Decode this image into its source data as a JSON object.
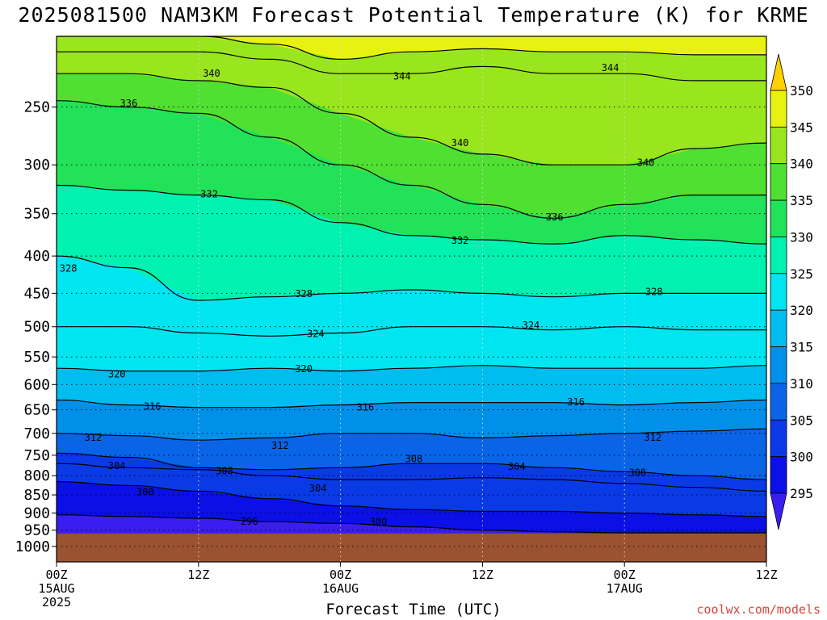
{
  "title": "2025081500 NAM3KM Forecast Potential Temperature (K) for KRME",
  "xaxis_title": "Forecast Time (UTC)",
  "credit": "coolwx.com/models",
  "colors": {
    "terrain": "#9a5231",
    "contour_line": "#000000",
    "credit_text": "#d9453a"
  },
  "chart_data": {
    "type": "heatmap",
    "title": "2025081500 NAM3KM Forecast Potential Temperature (K) for KRME",
    "xlabel": "Forecast Time (UTC)",
    "ylabel": "",
    "y_axis": {
      "log_pressure": true,
      "range_hpa": [
        1050,
        200
      ],
      "ticks": [
        250,
        300,
        350,
        400,
        450,
        500,
        550,
        600,
        650,
        700,
        750,
        800,
        850,
        900,
        950,
        1000
      ],
      "tick_labels": [
        "250",
        "300",
        "350",
        "400",
        "450",
        "500",
        "550",
        "600",
        "650",
        "700",
        "750",
        "800",
        "850",
        "900",
        "950",
        "1000"
      ]
    },
    "x_axis": {
      "range_hours": [
        0,
        60
      ],
      "ticks_hours": [
        0,
        12,
        24,
        36,
        48,
        60
      ],
      "tick_labels": [
        [
          "00Z",
          "15AUG",
          "2025"
        ],
        [
          "12Z"
        ],
        [
          "00Z",
          "16AUG"
        ],
        [
          "12Z"
        ],
        [
          "00Z",
          "17AUG"
        ],
        [
          "12Z"
        ]
      ]
    },
    "grid": true,
    "colorbar": {
      "labels": [
        "295",
        "300",
        "305",
        "310",
        "315",
        "320",
        "325",
        "330",
        "335",
        "340",
        "345",
        "350"
      ],
      "bins": [
        {
          "from": 290,
          "to": 295,
          "color": "#3a1ef0"
        },
        {
          "from": 295,
          "to": 300,
          "color": "#0a10e6"
        },
        {
          "from": 300,
          "to": 305,
          "color": "#0a3ae6"
        },
        {
          "from": 305,
          "to": 310,
          "color": "#0a64e8"
        },
        {
          "from": 310,
          "to": 315,
          "color": "#0090ea"
        },
        {
          "from": 315,
          "to": 320,
          "color": "#00bdf0"
        },
        {
          "from": 320,
          "to": 325,
          "color": "#00e6f0"
        },
        {
          "from": 325,
          "to": 330,
          "color": "#00f2b0"
        },
        {
          "from": 330,
          "to": 335,
          "color": "#22e25a"
        },
        {
          "from": 335,
          "to": 340,
          "color": "#50e032"
        },
        {
          "from": 340,
          "to": 345,
          "color": "#9ae61e"
        },
        {
          "from": 345,
          "to": 350,
          "color": "#e8f210"
        },
        {
          "from": 350,
          "to": 360,
          "color": "#ffd100"
        }
      ]
    },
    "terrain_top_hpa": 960,
    "hours": [
      0,
      6,
      12,
      18,
      24,
      30,
      36,
      42,
      48,
      54,
      60
    ],
    "isentropes": [
      {
        "theta": 296,
        "pressure_hpa": [
          905,
          910,
          915,
          925,
          930,
          940,
          950,
          955,
          958,
          958,
          958
        ]
      },
      {
        "theta": 300,
        "pressure_hpa": [
          815,
          825,
          840,
          860,
          880,
          890,
          895,
          895,
          900,
          905,
          910
        ]
      },
      {
        "theta": 304,
        "pressure_hpa": [
          770,
          780,
          785,
          800,
          810,
          810,
          805,
          810,
          820,
          830,
          840
        ]
      },
      {
        "theta": 308,
        "pressure_hpa": [
          745,
          755,
          780,
          785,
          780,
          770,
          770,
          780,
          790,
          800,
          810
        ]
      },
      {
        "theta": 312,
        "pressure_hpa": [
          700,
          705,
          715,
          710,
          700,
          700,
          710,
          705,
          700,
          695,
          690
        ]
      },
      {
        "theta": 316,
        "pressure_hpa": [
          630,
          640,
          645,
          645,
          640,
          635,
          635,
          635,
          640,
          635,
          630
        ]
      },
      {
        "theta": 320,
        "pressure_hpa": [
          570,
          575,
          575,
          570,
          575,
          570,
          565,
          570,
          570,
          570,
          565
        ]
      },
      {
        "theta": 324,
        "pressure_hpa": [
          500,
          500,
          510,
          515,
          510,
          500,
          500,
          505,
          500,
          505,
          505
        ]
      },
      {
        "theta": 328,
        "pressure_hpa": [
          400,
          415,
          460,
          455,
          450,
          445,
          450,
          455,
          450,
          450,
          450
        ]
      },
      {
        "theta": 332,
        "pressure_hpa": [
          320,
          325,
          330,
          335,
          360,
          375,
          380,
          385,
          375,
          380,
          385
        ]
      },
      {
        "theta": 336,
        "pressure_hpa": [
          245,
          250,
          255,
          275,
          300,
          320,
          340,
          355,
          340,
          330,
          330
        ]
      },
      {
        "theta": 340,
        "pressure_hpa": [
          225,
          225,
          230,
          235,
          255,
          275,
          290,
          300,
          300,
          285,
          280
        ]
      },
      {
        "theta": 344,
        "pressure_hpa": [
          210,
          210,
          210,
          215,
          225,
          225,
          220,
          225,
          225,
          230,
          230
        ]
      },
      {
        "theta": 348,
        "pressure_hpa": [
          200,
          200,
          200,
          205,
          215,
          210,
          208,
          210,
          210,
          212,
          212
        ]
      }
    ],
    "contour_labels": [
      {
        "text": "296",
        "hour": 16.3,
        "p": 925
      },
      {
        "text": "300",
        "hour": 7.5,
        "p": 842
      },
      {
        "text": "300",
        "hour": 27.2,
        "p": 926
      },
      {
        "text": "304",
        "hour": 5.1,
        "p": 775
      },
      {
        "text": "304",
        "hour": 22.1,
        "p": 833
      },
      {
        "text": "304",
        "hour": 38.9,
        "p": 777
      },
      {
        "text": "308",
        "hour": 14.2,
        "p": 788
      },
      {
        "text": "308",
        "hour": 30.2,
        "p": 759
      },
      {
        "text": "308",
        "hour": 49.1,
        "p": 792
      },
      {
        "text": "312",
        "hour": 3.1,
        "p": 709
      },
      {
        "text": "312",
        "hour": 18.9,
        "p": 728
      },
      {
        "text": "312",
        "hour": 50.4,
        "p": 709
      },
      {
        "text": "316",
        "hour": 8.1,
        "p": 643
      },
      {
        "text": "316",
        "hour": 26.1,
        "p": 645
      },
      {
        "text": "316",
        "hour": 43.9,
        "p": 634
      },
      {
        "text": "320",
        "hour": 5.1,
        "p": 581
      },
      {
        "text": "320",
        "hour": 20.9,
        "p": 571
      },
      {
        "text": "324",
        "hour": 21.9,
        "p": 511
      },
      {
        "text": "324",
        "hour": 40.1,
        "p": 498
      },
      {
        "text": "328",
        "hour": 1.0,
        "p": 416
      },
      {
        "text": "328",
        "hour": 20.9,
        "p": 451
      },
      {
        "text": "328",
        "hour": 50.5,
        "p": 448
      },
      {
        "text": "332",
        "hour": 12.9,
        "p": 329
      },
      {
        "text": "332",
        "hour": 34.1,
        "p": 381
      },
      {
        "text": "336",
        "hour": 6.1,
        "p": 247
      },
      {
        "text": "336",
        "hour": 42.1,
        "p": 354
      },
      {
        "text": "340",
        "hour": 13.1,
        "p": 225
      },
      {
        "text": "340",
        "hour": 34.1,
        "p": 280
      },
      {
        "text": "340",
        "hour": 49.8,
        "p": 298
      },
      {
        "text": "344",
        "hour": 29.2,
        "p": 227
      },
      {
        "text": "344",
        "hour": 46.8,
        "p": 221
      }
    ]
  }
}
